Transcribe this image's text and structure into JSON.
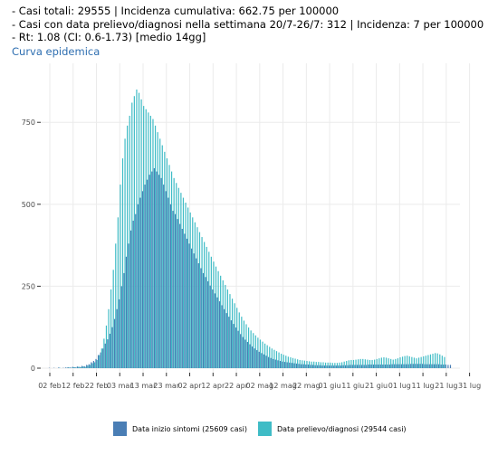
{
  "header": {
    "line1": "- Casi totali: 29555 | Incidenza cumulativa: 662.75 per 100000",
    "line2": "- Casi con data prelievo/diagnosi nella settimana 20/7-26/7: 312 | Incidenza: 7 per 100000",
    "line3": "- Rt: 1.08 (CI: 0.6-1.73) [medio 14gg]"
  },
  "link_label": "Curva epidemica",
  "chart_data": {
    "type": "bar",
    "x_start": "2020-02-02",
    "x_tick_labels": [
      "02 feb",
      "12 feb",
      "22 feb",
      "03 mar",
      "13 mar",
      "23 mar",
      "02 apr",
      "12 apr",
      "22 apr",
      "02 mag",
      "12 mag",
      "22 mag",
      "01 giu",
      "11 giu",
      "21 giu",
      "01 lug",
      "11 lug",
      "21 lug",
      "31 lug"
    ],
    "y_ticks": [
      0,
      250,
      500,
      750
    ],
    "y_tick_labels": [
      "0",
      "250",
      "500",
      "750"
    ],
    "ylim": [
      0,
      930
    ],
    "grid": true,
    "legend_position": "bottom",
    "series": [
      {
        "name": "Data inizio sintomi (25609 casi)",
        "color": "#4a7eb5",
        "values": [
          1,
          0,
          1,
          0,
          2,
          0,
          1,
          2,
          3,
          2,
          4,
          3,
          5,
          4,
          7,
          6,
          10,
          12,
          18,
          22,
          28,
          40,
          48,
          60,
          75,
          88,
          105,
          125,
          150,
          180,
          210,
          250,
          290,
          340,
          380,
          420,
          450,
          470,
          500,
          520,
          540,
          560,
          575,
          590,
          600,
          610,
          600,
          590,
          580,
          560,
          540,
          520,
          500,
          480,
          470,
          455,
          440,
          425,
          410,
          395,
          380,
          365,
          350,
          335,
          320,
          305,
          290,
          278,
          265,
          252,
          240,
          228,
          216,
          204,
          192,
          180,
          168,
          157,
          146,
          135,
          124,
          114,
          104,
          95,
          87,
          80,
          73,
          66,
          60,
          55,
          50,
          46,
          42,
          38,
          34,
          31,
          28,
          26,
          24,
          22,
          20,
          19,
          18,
          17,
          16,
          15,
          14,
          13,
          12,
          12,
          11,
          11,
          10,
          10,
          9,
          9,
          9,
          8,
          8,
          8,
          8,
          8,
          8,
          8,
          8,
          8,
          9,
          9,
          9,
          10,
          10,
          10,
          10,
          10,
          10,
          10,
          10,
          11,
          11,
          11,
          11,
          11,
          11,
          11,
          11,
          11,
          11,
          12,
          12,
          12,
          12,
          12,
          12,
          12,
          12,
          13,
          13,
          13,
          13,
          13,
          13,
          12,
          12,
          12,
          12,
          12,
          12,
          12,
          11,
          11,
          11,
          10,
          10
        ]
      },
      {
        "name": "Data prelievo/diagnosi (29544 casi)",
        "color": "#3fbcc6",
        "values": [
          0,
          0,
          0,
          0,
          1,
          0,
          0,
          1,
          2,
          1,
          3,
          2,
          4,
          3,
          5,
          4,
          8,
          10,
          15,
          18,
          25,
          40,
          60,
          90,
          130,
          180,
          240,
          300,
          380,
          460,
          560,
          640,
          700,
          740,
          770,
          810,
          830,
          850,
          840,
          820,
          800,
          790,
          780,
          770,
          760,
          740,
          720,
          700,
          680,
          660,
          640,
          620,
          600,
          580,
          565,
          550,
          535,
          520,
          505,
          490,
          475,
          460,
          445,
          430,
          415,
          400,
          385,
          370,
          355,
          340,
          325,
          310,
          296,
          282,
          268,
          254,
          240,
          226,
          212,
          198,
          184,
          170,
          157,
          145,
          134,
          124,
          115,
          107,
          100,
          93,
          87,
          81,
          75,
          70,
          65,
          60,
          56,
          52,
          48,
          44,
          41,
          38,
          35,
          33,
          31,
          29,
          27,
          25,
          24,
          23,
          22,
          21,
          20,
          20,
          19,
          19,
          18,
          18,
          17,
          17,
          17,
          16,
          16,
          16,
          17,
          18,
          20,
          22,
          24,
          25,
          25,
          26,
          27,
          28,
          28,
          27,
          26,
          25,
          25,
          26,
          28,
          30,
          32,
          33,
          32,
          30,
          28,
          26,
          28,
          30,
          33,
          35,
          37,
          38,
          36,
          34,
          32,
          30,
          32,
          34,
          36,
          38,
          40,
          42,
          44,
          46,
          45,
          42,
          38,
          34
        ]
      }
    ]
  }
}
